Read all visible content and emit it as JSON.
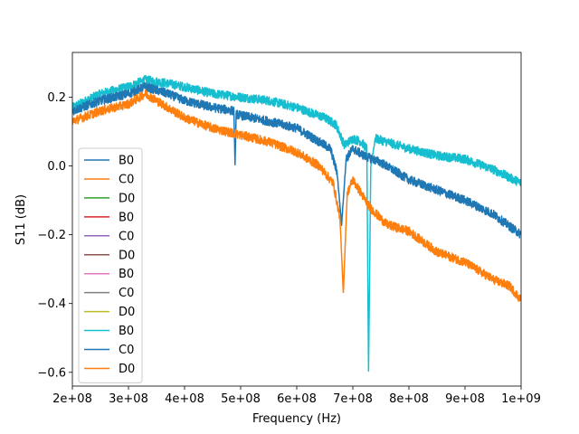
{
  "chart_data": {
    "type": "line",
    "title": "",
    "xlabel": "Frequency (Hz)",
    "ylabel": "S11 (dB)",
    "xlim": [
      200000000,
      1000000000
    ],
    "ylim": [
      -0.64,
      0.33
    ],
    "x_ticks": [
      {
        "value": 200000000,
        "label": "2e+08"
      },
      {
        "value": 300000000,
        "label": "3e+08"
      },
      {
        "value": 400000000,
        "label": "4e+08"
      },
      {
        "value": 500000000,
        "label": "5e+08"
      },
      {
        "value": 600000000,
        "label": "6e+08"
      },
      {
        "value": 700000000,
        "label": "7e+08"
      },
      {
        "value": 800000000,
        "label": "8e+08"
      },
      {
        "value": 900000000,
        "label": "9e+08"
      },
      {
        "value": 1000000000,
        "label": "1e+09"
      }
    ],
    "y_ticks": [
      {
        "value": 0.2,
        "label": "0.2"
      },
      {
        "value": 0.0,
        "label": "0.0"
      },
      {
        "value": -0.2,
        "label": "−0.2"
      },
      {
        "value": -0.4,
        "label": "−0.4"
      },
      {
        "value": -0.6,
        "label": "−0.6"
      }
    ],
    "grid": false,
    "legend_position": "lower-left",
    "series": [
      {
        "name": "B0",
        "color": "#1f77b4",
        "visible": false,
        "x": [],
        "y": []
      },
      {
        "name": "C0",
        "color": "#ff7f0e",
        "visible": false,
        "x": [],
        "y": []
      },
      {
        "name": "D0",
        "color": "#2ca02c",
        "visible": false,
        "x": [],
        "y": []
      },
      {
        "name": "B0",
        "color": "#d62728",
        "visible": false,
        "x": [],
        "y": []
      },
      {
        "name": "C0",
        "color": "#9467bd",
        "visible": false,
        "x": [],
        "y": []
      },
      {
        "name": "D0",
        "color": "#8c564b",
        "visible": false,
        "x": [],
        "y": []
      },
      {
        "name": "B0",
        "color": "#e377c2",
        "visible": false,
        "x": [],
        "y": []
      },
      {
        "name": "C0",
        "color": "#7f7f7f",
        "visible": false,
        "x": [],
        "y": []
      },
      {
        "name": "D0",
        "color": "#bcbd22",
        "visible": false,
        "x": [],
        "y": []
      },
      {
        "name": "B0",
        "color": "#17becf",
        "visible": true,
        "x": [
          200000000,
          250000000,
          300000000,
          330000000,
          370000000,
          400000000,
          450000000,
          500000000,
          550000000,
          600000000,
          650000000,
          670000000,
          685000000,
          700000000,
          715000000,
          725000000,
          728000000,
          732000000,
          740000000,
          760000000,
          800000000,
          850000000,
          900000000,
          950000000,
          1000000000
        ],
        "y": [
          0.17,
          0.21,
          0.23,
          0.25,
          0.24,
          0.23,
          0.21,
          0.2,
          0.19,
          0.17,
          0.14,
          0.12,
          0.06,
          0.08,
          0.07,
          0.05,
          -0.6,
          0.0,
          0.08,
          0.07,
          0.05,
          0.03,
          0.02,
          -0.01,
          -0.05
        ]
      },
      {
        "name": "C0",
        "color": "#1f77b4",
        "visible": true,
        "x": [
          200000000,
          250000000,
          300000000,
          330000000,
          370000000,
          400000000,
          450000000,
          488000000,
          490000000,
          492000000,
          520000000,
          550000000,
          600000000,
          630000000,
          660000000,
          672000000,
          680000000,
          688000000,
          700000000,
          720000000,
          750000000,
          800000000,
          850000000,
          900000000,
          950000000,
          1000000000
        ],
        "y": [
          0.16,
          0.19,
          0.21,
          0.23,
          0.21,
          0.19,
          0.17,
          0.16,
          0.0,
          0.15,
          0.14,
          0.13,
          0.11,
          0.08,
          0.05,
          -0.02,
          -0.17,
          0.02,
          0.05,
          0.03,
          0.01,
          -0.04,
          -0.07,
          -0.1,
          -0.14,
          -0.2
        ]
      },
      {
        "name": "D0",
        "color": "#ff7f0e",
        "visible": true,
        "x": [
          200000000,
          250000000,
          300000000,
          330000000,
          370000000,
          400000000,
          450000000,
          500000000,
          550000000,
          600000000,
          640000000,
          665000000,
          677000000,
          683000000,
          690000000,
          700000000,
          730000000,
          760000000,
          800000000,
          850000000,
          900000000,
          950000000,
          980000000,
          1000000000
        ],
        "y": [
          0.13,
          0.16,
          0.18,
          0.21,
          0.17,
          0.14,
          0.11,
          0.09,
          0.07,
          0.04,
          0.0,
          -0.05,
          -0.15,
          -0.37,
          -0.08,
          -0.04,
          -0.12,
          -0.17,
          -0.19,
          -0.25,
          -0.28,
          -0.33,
          -0.35,
          -0.39
        ]
      }
    ]
  }
}
